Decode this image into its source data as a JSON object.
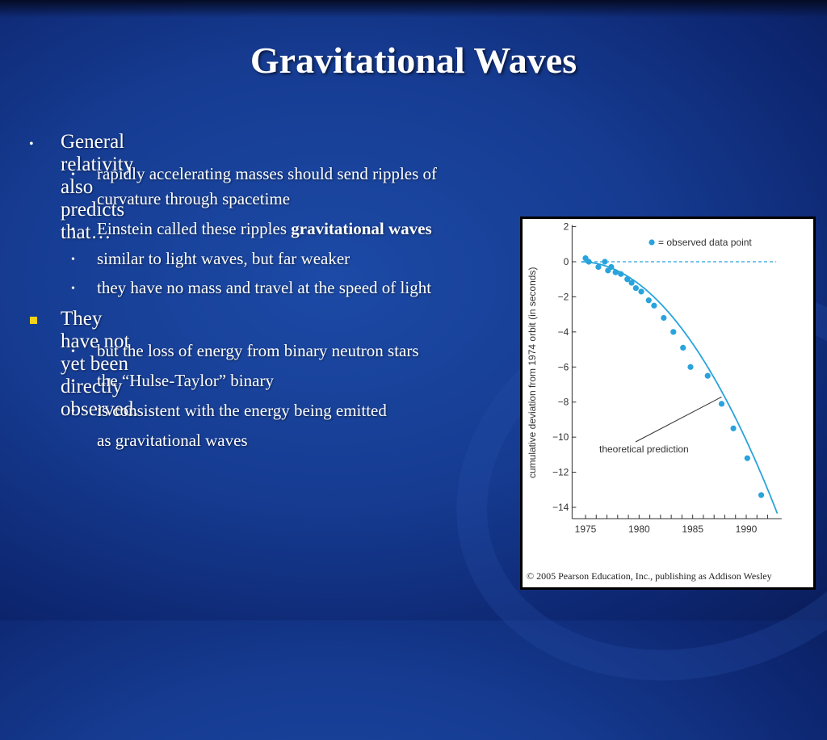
{
  "slide": {
    "title": "Gravitational Waves",
    "bullets": [
      {
        "text": "General relativity also predicts that…",
        "subs": [
          {
            "text": "rapidly accelerating masses should send ripples of curvature through spacetime"
          },
          {
            "pre": "Einstein called these ripples ",
            "bold": "gravitational waves"
          },
          {
            "text": "similar to light waves, but far weaker"
          },
          {
            "text": "they have no mass and travel at the speed of light"
          }
        ]
      },
      {
        "text": "They have not yet been directly observed.",
        "subs": [
          {
            "text": "but the loss of energy from binary neutron stars"
          },
          {
            "text": "the “Hulse-Taylor” binary"
          },
          {
            "text": "is consistent with the energy being emitted"
          },
          {
            "text": "as gravitational waves"
          }
        ]
      }
    ],
    "colors": {
      "background": "#163c92",
      "text": "#ffffff",
      "square_bullet": "#f2d21a"
    }
  },
  "chart_data": {
    "type": "scatter",
    "title": "",
    "xlabel": "",
    "ylabel": "cumulative deviation from 1974 orbit (in seconds)",
    "xlim": [
      1974.5,
      1993
    ],
    "ylim": [
      -15,
      2
    ],
    "xticks": [
      "1975",
      "1980",
      "1985",
      "1990"
    ],
    "yticks": [
      "2",
      "0",
      "−2",
      "−4",
      "−6",
      "−8",
      "−10",
      "−12",
      "−14"
    ],
    "legend": "= observed data point",
    "curve_label": "theoretical prediction",
    "series": [
      {
        "name": "observed data point",
        "x": [
          1975.0,
          1975.3,
          1976.2,
          1976.8,
          1977.1,
          1977.4,
          1977.8,
          1978.3,
          1978.9,
          1979.3,
          1979.7,
          1980.2,
          1980.9,
          1981.4,
          1982.3,
          1983.2,
          1984.1,
          1984.8,
          1986.4,
          1987.7,
          1988.8,
          1990.1,
          1991.4
        ],
        "y": [
          0.2,
          0.0,
          -0.3,
          0.0,
          -0.5,
          -0.3,
          -0.6,
          -0.7,
          -1.0,
          -1.2,
          -1.5,
          -1.7,
          -2.2,
          -2.5,
          -3.2,
          -4.0,
          -4.9,
          -6.0,
          -6.5,
          -8.1,
          -9.5,
          -11.2,
          -13.3
        ]
      }
    ],
    "colors": {
      "points": "#29a3dc",
      "curve": "#29a3dc",
      "zero_line": "#29a3dc",
      "axis": "#333333"
    },
    "copyright": "© 2005 Pearson Education, Inc., publishing as Addison Wesley"
  }
}
